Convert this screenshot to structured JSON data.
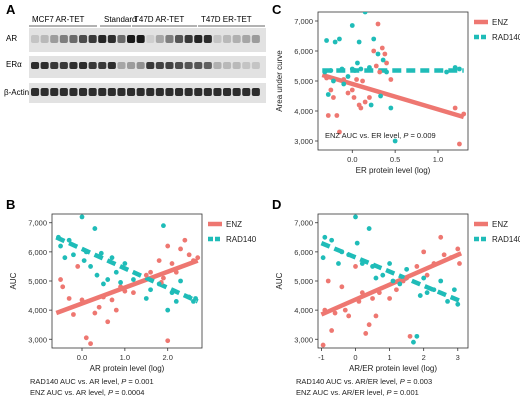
{
  "panels": {
    "A": {
      "letter": "A",
      "group_labels": [
        "MCF7 AR-TET",
        "Standard",
        "T47D AR-TET",
        "T47D ER-TET"
      ],
      "row_labels": [
        "AR",
        "ERα",
        "β-Actin"
      ]
    },
    "B": {
      "letter": "B"
    },
    "C": {
      "letter": "C"
    },
    "D": {
      "letter": "D"
    }
  },
  "colors": {
    "ENZ": "#ee7771",
    "RAD140": "#1fbcb8",
    "blot_bg": "#e2e2e2",
    "band": "#1a1a1a"
  },
  "chart_data": [
    {
      "id": "C",
      "type": "scatter",
      "xlabel": "ER protein level (log)",
      "ylabel": "Area under curve",
      "xlim": [
        -0.4,
        1.35
      ],
      "ylim": [
        2700,
        7300
      ],
      "xticks": [
        0.0,
        0.5,
        1.0
      ],
      "xtick_labels": [
        "0.0",
        "0.5",
        "1.0"
      ],
      "yticks": [
        3000,
        4000,
        5000,
        6000,
        7000
      ],
      "ytick_labels": [
        "3,000",
        "4,000",
        "5,000",
        "6,000",
        "7,000"
      ],
      "legend": [
        "ENZ",
        "RAD140"
      ],
      "legend_position": "top-right",
      "annotations": [
        "ENZ AUC vs. ER level, P = 0.009"
      ],
      "series": [
        {
          "name": "ENZ",
          "color": "#ee7771",
          "points": [
            [
              -0.3,
              5100
            ],
            [
              -0.25,
              4700
            ],
            [
              -0.22,
              4450
            ],
            [
              -0.18,
              3850
            ],
            [
              -0.15,
              3300
            ],
            [
              -0.1,
              5050
            ],
            [
              -0.05,
              4600
            ],
            [
              0.0,
              4700
            ],
            [
              0.02,
              4450
            ],
            [
              0.05,
              5050
            ],
            [
              0.08,
              4200
            ],
            [
              0.1,
              4100
            ],
            [
              0.12,
              5000
            ],
            [
              0.15,
              4300
            ],
            [
              0.2,
              4450
            ],
            [
              0.25,
              6000
            ],
            [
              0.28,
              5500
            ],
            [
              0.3,
              6900
            ],
            [
              0.32,
              5300
            ],
            [
              0.35,
              6100
            ],
            [
              0.38,
              5900
            ],
            [
              0.4,
              5600
            ],
            [
              0.45,
              5050
            ],
            [
              1.2,
              4100
            ],
            [
              1.25,
              2900
            ],
            [
              1.3,
              3900
            ],
            [
              -0.28,
              3850
            ]
          ],
          "trend": [
            [
              -0.35,
              5200
            ],
            [
              1.3,
              3800
            ]
          ]
        },
        {
          "name": "RAD140",
          "color": "#1fbcb8",
          "points": [
            [
              -0.32,
              5300
            ],
            [
              -0.3,
              6350
            ],
            [
              -0.28,
              4550
            ],
            [
              -0.25,
              5350
            ],
            [
              -0.22,
              5000
            ],
            [
              -0.2,
              6300
            ],
            [
              -0.15,
              6400
            ],
            [
              -0.12,
              5400
            ],
            [
              -0.1,
              4900
            ],
            [
              -0.05,
              5150
            ],
            [
              0.0,
              5400
            ],
            [
              0.0,
              6850
            ],
            [
              0.03,
              5350
            ],
            [
              0.06,
              5600
            ],
            [
              0.08,
              6300
            ],
            [
              0.1,
              5400
            ],
            [
              0.15,
              7300
            ],
            [
              0.2,
              5450
            ],
            [
              0.22,
              4200
            ],
            [
              0.25,
              6400
            ],
            [
              0.3,
              5900
            ],
            [
              0.33,
              4500
            ],
            [
              0.36,
              5700
            ],
            [
              0.4,
              5300
            ],
            [
              0.45,
              4100
            ],
            [
              0.5,
              3000
            ],
            [
              1.1,
              5300
            ],
            [
              1.2,
              5450
            ],
            [
              1.25,
              5400
            ]
          ],
          "trend": [
            [
              -0.35,
              5350
            ],
            [
              1.3,
              5350
            ]
          ]
        }
      ]
    },
    {
      "id": "B",
      "type": "scatter",
      "xlabel": "AR protein level (log)",
      "ylabel": "AUC",
      "xlim": [
        -0.7,
        2.8
      ],
      "ylim": [
        2700,
        7300
      ],
      "xticks": [
        0.0,
        1.0,
        2.0
      ],
      "xtick_labels": [
        "0.0",
        "1.0",
        "2.0"
      ],
      "yticks": [
        3000,
        4000,
        5000,
        6000,
        7000
      ],
      "ytick_labels": [
        "3,000",
        "4,000",
        "5,000",
        "6,000",
        "7,000"
      ],
      "legend": [
        "ENZ",
        "RAD140"
      ],
      "legend_position": "top-right",
      "annotations": [
        "RAD140 AUC vs. AR level, P = 0.001",
        "ENZ AUC vs. AR level, P = 0.0004"
      ],
      "series": [
        {
          "name": "ENZ",
          "color": "#ee7771",
          "points": [
            [
              -0.5,
              5050
            ],
            [
              -0.45,
              4800
            ],
            [
              -0.3,
              4400
            ],
            [
              -0.2,
              3850
            ],
            [
              -0.1,
              5500
            ],
            [
              0.0,
              4350
            ],
            [
              0.1,
              3050
            ],
            [
              0.2,
              2850
            ],
            [
              0.3,
              3900
            ],
            [
              0.4,
              4100
            ],
            [
              0.5,
              4450
            ],
            [
              0.6,
              3600
            ],
            [
              0.7,
              4350
            ],
            [
              0.8,
              4000
            ],
            [
              0.9,
              4800
            ],
            [
              1.0,
              4650
            ],
            [
              1.2,
              4600
            ],
            [
              1.5,
              5200
            ],
            [
              1.6,
              5300
            ],
            [
              1.8,
              5700
            ],
            [
              1.9,
              5100
            ],
            [
              2.0,
              6200
            ],
            [
              2.1,
              5600
            ],
            [
              2.2,
              5300
            ],
            [
              2.3,
              6100
            ],
            [
              2.4,
              6400
            ],
            [
              2.5,
              5900
            ],
            [
              2.6,
              5700
            ],
            [
              2.7,
              5800
            ],
            [
              2.0,
              2950
            ],
            [
              1.85,
              4950
            ]
          ],
          "trend": [
            [
              -0.6,
              3900
            ],
            [
              2.7,
              5700
            ]
          ]
        },
        {
          "name": "RAD140",
          "color": "#1fbcb8",
          "points": [
            [
              -0.55,
              6500
            ],
            [
              -0.5,
              6200
            ],
            [
              -0.4,
              5800
            ],
            [
              -0.3,
              6400
            ],
            [
              -0.2,
              5900
            ],
            [
              0.0,
              7200
            ],
            [
              0.05,
              5700
            ],
            [
              0.1,
              6000
            ],
            [
              0.2,
              5500
            ],
            [
              0.3,
              6800
            ],
            [
              0.35,
              5200
            ],
            [
              0.45,
              5950
            ],
            [
              0.5,
              4900
            ],
            [
              0.6,
              5050
            ],
            [
              0.7,
              5800
            ],
            [
              0.8,
              5300
            ],
            [
              0.9,
              4950
            ],
            [
              1.0,
              5600
            ],
            [
              1.2,
              5050
            ],
            [
              1.5,
              4400
            ],
            [
              1.6,
              4700
            ],
            [
              1.8,
              4900
            ],
            [
              1.9,
              6900
            ],
            [
              2.0,
              4000
            ],
            [
              2.1,
              4600
            ],
            [
              2.2,
              4300
            ],
            [
              2.3,
              5000
            ],
            [
              2.5,
              4450
            ],
            [
              2.6,
              4300
            ],
            [
              2.65,
              4400
            ]
          ],
          "trend": [
            [
              -0.6,
              6500
            ],
            [
              2.7,
              4300
            ]
          ]
        }
      ]
    },
    {
      "id": "D",
      "type": "scatter",
      "xlabel": "AR/ER protein level (log)",
      "ylabel": "AUC",
      "xlim": [
        -1.1,
        3.3
      ],
      "ylim": [
        2700,
        7300
      ],
      "xticks": [
        -1,
        0,
        1,
        2,
        3
      ],
      "xtick_labels": [
        "-1",
        "0",
        "1",
        "2",
        "3"
      ],
      "yticks": [
        3000,
        4000,
        5000,
        6000,
        7000
      ],
      "ytick_labels": [
        "3,000",
        "4,000",
        "5,000",
        "6,000",
        "7,000"
      ],
      "legend": [
        "ENZ",
        "RAD140"
      ],
      "legend_position": "top-right",
      "annotations": [
        "RAD140 AUC vs. AR/ER level, P = 0.003",
        "ENZ AUC vs. AR/ER level, P = 0.001"
      ],
      "series": [
        {
          "name": "ENZ",
          "color": "#ee7771",
          "points": [
            [
              -0.95,
              2800
            ],
            [
              -0.9,
              4000
            ],
            [
              -0.8,
              5000
            ],
            [
              -0.7,
              3300
            ],
            [
              -0.6,
              3900
            ],
            [
              -0.4,
              4800
            ],
            [
              -0.3,
              4000
            ],
            [
              -0.2,
              3800
            ],
            [
              0.0,
              5500
            ],
            [
              0.1,
              4300
            ],
            [
              0.2,
              4600
            ],
            [
              0.3,
              3200
            ],
            [
              0.4,
              3500
            ],
            [
              0.5,
              4400
            ],
            [
              0.6,
              3800
            ],
            [
              0.7,
              4600
            ],
            [
              1.0,
              4400
            ],
            [
              1.2,
              4700
            ],
            [
              1.4,
              5000
            ],
            [
              1.5,
              5100
            ],
            [
              1.8,
              5500
            ],
            [
              2.0,
              6000
            ],
            [
              2.1,
              5200
            ],
            [
              2.3,
              5600
            ],
            [
              2.5,
              6500
            ],
            [
              2.6,
              5900
            ],
            [
              2.8,
              5800
            ],
            [
              3.0,
              6100
            ],
            [
              3.05,
              5600
            ],
            [
              1.6,
              3100
            ]
          ],
          "trend": [
            [
              -1.0,
              3850
            ],
            [
              3.1,
              5950
            ]
          ]
        },
        {
          "name": "RAD140",
          "color": "#1fbcb8",
          "points": [
            [
              -0.95,
              5800
            ],
            [
              -0.9,
              6500
            ],
            [
              -0.7,
              6400
            ],
            [
              -0.5,
              5600
            ],
            [
              -0.4,
              6000
            ],
            [
              -0.2,
              5900
            ],
            [
              0.0,
              7200
            ],
            [
              0.05,
              6300
            ],
            [
              0.2,
              5600
            ],
            [
              0.4,
              6800
            ],
            [
              0.5,
              5500
            ],
            [
              0.6,
              5100
            ],
            [
              0.8,
              5200
            ],
            [
              1.0,
              5600
            ],
            [
              1.1,
              5000
            ],
            [
              1.3,
              4900
            ],
            [
              1.5,
              5400
            ],
            [
              1.7,
              2900
            ],
            [
              1.9,
              4500
            ],
            [
              2.0,
              5100
            ],
            [
              2.1,
              4600
            ],
            [
              2.3,
              4700
            ],
            [
              2.5,
              5000
            ],
            [
              2.7,
              4300
            ],
            [
              2.9,
              4700
            ],
            [
              3.0,
              4200
            ],
            [
              1.8,
              3100
            ]
          ],
          "trend": [
            [
              -1.0,
              6300
            ],
            [
              3.1,
              4300
            ]
          ]
        }
      ]
    }
  ]
}
